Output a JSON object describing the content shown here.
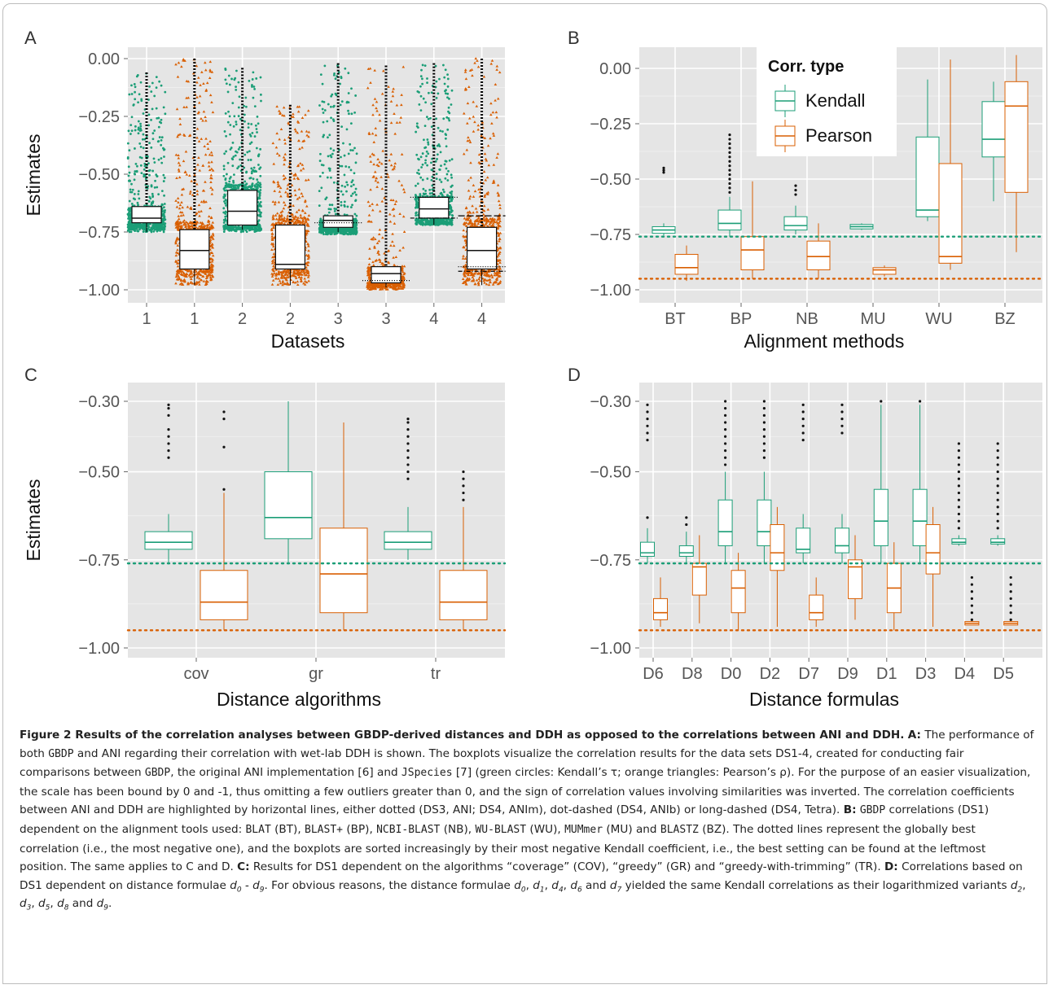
{
  "figure": {
    "panels": [
      {
        "letter": "A",
        "chart_data": {
          "type": "box",
          "xlabel": "Datasets",
          "ylabel": "Estimates",
          "ylim": [
            -1.0,
            0.0
          ],
          "yticks": [
            0.0,
            -0.25,
            -0.5,
            -0.75,
            -1.0
          ],
          "ytick_labels": [
            "0.00",
            "−0.25",
            "−0.50",
            "−0.75",
            "−1.00"
          ],
          "categories": [
            "1",
            "1",
            "2",
            "2",
            "3",
            "3",
            "4",
            "4"
          ],
          "series": [
            {
              "name": "Kendall",
              "color": "#1b9e77",
              "marker": "circle"
            },
            {
              "name": "Pearson",
              "color": "#d95f02",
              "marker": "triangle"
            }
          ],
          "boxes": [
            {
              "series": 0,
              "q1": -0.71,
              "median": -0.69,
              "q3": -0.64,
              "lo": -0.75,
              "hi": -0.06
            },
            {
              "series": 1,
              "q1": -0.91,
              "median": -0.83,
              "q3": -0.74,
              "lo": -0.98,
              "hi": 0.0
            },
            {
              "series": 0,
              "q1": -0.72,
              "median": -0.66,
              "q3": -0.57,
              "lo": -0.74,
              "hi": -0.04
            },
            {
              "series": 1,
              "q1": -0.91,
              "median": -0.89,
              "q3": -0.72,
              "lo": -0.98,
              "hi": -0.2
            },
            {
              "series": 0,
              "q1": -0.73,
              "median": -0.7,
              "q3": -0.68,
              "lo": -0.75,
              "hi": -0.02
            },
            {
              "series": 1,
              "q1": -0.97,
              "median": -0.93,
              "q3": -0.9,
              "lo": -0.99,
              "hi": -0.03
            },
            {
              "series": 0,
              "q1": -0.69,
              "median": -0.65,
              "q3": -0.6,
              "lo": -0.72,
              "hi": -0.02
            },
            {
              "series": 1,
              "q1": -0.91,
              "median": -0.83,
              "q3": -0.73,
              "lo": -0.98,
              "hi": 0.0
            }
          ],
          "reference_lines": [
            {
              "box": 4,
              "value": -0.71,
              "style": "dotted"
            },
            {
              "box": 5,
              "value": -0.96,
              "style": "dotted"
            },
            {
              "box": 6,
              "value": -0.6,
              "style": "dotted"
            },
            {
              "box": 6,
              "value": -0.69,
              "style": "dot-dashed"
            },
            {
              "box": 7,
              "value": -0.68,
              "style": "long-dashed"
            },
            {
              "box": 7,
              "value": -0.9,
              "style": "dotted"
            },
            {
              "box": 7,
              "value": -0.92,
              "style": "dot-dashed"
            }
          ]
        }
      },
      {
        "letter": "B",
        "chart_data": {
          "type": "box",
          "xlabel": "Alignment methods",
          "ylabel": "",
          "ylim": [
            -1.0,
            0.0
          ],
          "yticks": [
            0.0,
            -0.25,
            -0.5,
            -0.75,
            -1.0
          ],
          "ytick_labels": [
            "0.00",
            "−0.25",
            "−0.50",
            "−0.75",
            "−1.00"
          ],
          "categories": [
            "BT",
            "BP",
            "NB",
            "MU",
            "WU",
            "BZ"
          ],
          "legend": {
            "title": "Corr. type",
            "position": "top-right",
            "items": [
              "Kendall",
              "Pearson"
            ]
          },
          "kendall": [
            {
              "q1": -0.745,
              "median": -0.73,
              "q3": -0.715,
              "lo": -0.755,
              "hi": -0.7,
              "outliers": [
                -0.45,
                -0.46,
                -0.47
              ]
            },
            {
              "q1": -0.73,
              "median": -0.7,
              "q3": -0.64,
              "lo": -0.76,
              "hi": -0.58,
              "outliers": [
                -0.3,
                -0.32,
                -0.34,
                -0.36,
                -0.38,
                -0.4,
                -0.42,
                -0.44,
                -0.46,
                -0.48,
                -0.5,
                -0.52,
                -0.54,
                -0.56
              ]
            },
            {
              "q1": -0.73,
              "median": -0.71,
              "q3": -0.67,
              "lo": -0.75,
              "hi": -0.62,
              "outliers": [
                -0.53,
                -0.55,
                -0.57
              ]
            },
            {
              "q1": -0.725,
              "median": -0.715,
              "q3": -0.705,
              "lo": -0.73,
              "hi": -0.7,
              "outliers": []
            },
            {
              "q1": -0.67,
              "median": -0.64,
              "q3": -0.31,
              "lo": -0.69,
              "hi": -0.05,
              "outliers": []
            },
            {
              "q1": -0.4,
              "median": -0.32,
              "q3": -0.15,
              "lo": -0.6,
              "hi": -0.06,
              "outliers": []
            }
          ],
          "pearson": [
            {
              "q1": -0.93,
              "median": -0.9,
              "q3": -0.84,
              "lo": -0.96,
              "hi": -0.8,
              "outliers": []
            },
            {
              "q1": -0.91,
              "median": -0.82,
              "q3": -0.76,
              "lo": -0.95,
              "hi": -0.51,
              "outliers": []
            },
            {
              "q1": -0.91,
              "median": -0.85,
              "q3": -0.78,
              "lo": -0.95,
              "hi": -0.7,
              "outliers": []
            },
            {
              "q1": -0.93,
              "median": -0.91,
              "q3": -0.9,
              "lo": -0.94,
              "hi": -0.89,
              "outliers": []
            },
            {
              "q1": -0.88,
              "median": -0.85,
              "q3": -0.43,
              "lo": -0.91,
              "hi": 0.04,
              "outliers": []
            },
            {
              "q1": -0.56,
              "median": -0.17,
              "q3": -0.06,
              "lo": -0.83,
              "hi": 0.06,
              "outliers": []
            }
          ],
          "hlines": [
            {
              "series": "Kendall",
              "value": -0.76
            },
            {
              "series": "Pearson",
              "value": -0.95
            }
          ]
        }
      },
      {
        "letter": "C",
        "chart_data": {
          "type": "box",
          "xlabel": "Distance algorithms",
          "ylabel": "Estimates",
          "ylim": [
            -1.0,
            -0.3
          ],
          "yticks": [
            -0.3,
            -0.5,
            -0.75,
            -1.0
          ],
          "ytick_labels": [
            "−0.30",
            "−0.50",
            "−0.75",
            "−1.00"
          ],
          "categories": [
            "cov",
            "gr",
            "tr"
          ],
          "kendall": [
            {
              "q1": -0.72,
              "median": -0.7,
              "q3": -0.67,
              "lo": -0.76,
              "hi": -0.62,
              "outliers": [
                -0.31,
                -0.32,
                -0.34,
                -0.38,
                -0.4,
                -0.42,
                -0.44,
                -0.46
              ]
            },
            {
              "q1": -0.69,
              "median": -0.63,
              "q3": -0.5,
              "lo": -0.76,
              "hi": -0.3,
              "outliers": []
            },
            {
              "q1": -0.72,
              "median": -0.7,
              "q3": -0.67,
              "lo": -0.75,
              "hi": -0.6,
              "outliers": [
                -0.35,
                -0.36,
                -0.38,
                -0.4,
                -0.42,
                -0.44,
                -0.46,
                -0.48,
                -0.5,
                -0.52
              ]
            }
          ],
          "pearson": [
            {
              "q1": -0.92,
              "median": -0.87,
              "q3": -0.78,
              "lo": -0.95,
              "hi": -0.56,
              "outliers": [
                -0.33,
                -0.35,
                -0.43,
                -0.55
              ]
            },
            {
              "q1": -0.9,
              "median": -0.79,
              "q3": -0.66,
              "lo": -0.95,
              "hi": -0.36,
              "outliers": []
            },
            {
              "q1": -0.92,
              "median": -0.87,
              "q3": -0.78,
              "lo": -0.95,
              "hi": -0.6,
              "outliers": [
                -0.5,
                -0.52,
                -0.54,
                -0.56,
                -0.58
              ]
            }
          ],
          "hlines": [
            {
              "series": "Kendall",
              "value": -0.76
            },
            {
              "series": "Pearson",
              "value": -0.95
            }
          ]
        }
      },
      {
        "letter": "D",
        "chart_data": {
          "type": "box",
          "xlabel": "Distance formulas",
          "ylabel": "",
          "ylim": [
            -1.0,
            -0.3
          ],
          "yticks": [
            -0.3,
            -0.5,
            -0.75,
            -1.0
          ],
          "ytick_labels": [
            "−0.30",
            "−0.50",
            "−0.75",
            "−1.00"
          ],
          "categories": [
            "D6",
            "D8",
            "D0",
            "D2",
            "D7",
            "D9",
            "D1",
            "D3",
            "D4",
            "D5"
          ],
          "kendall": [
            {
              "q1": -0.74,
              "median": -0.73,
              "q3": -0.7,
              "lo": -0.76,
              "hi": -0.66,
              "outliers": [
                -0.31,
                -0.33,
                -0.35,
                -0.37,
                -0.39,
                -0.41,
                -0.63
              ]
            },
            {
              "q1": -0.74,
              "median": -0.73,
              "q3": -0.71,
              "lo": -0.76,
              "hi": -0.67,
              "outliers": [
                -0.63,
                -0.65
              ]
            },
            {
              "q1": -0.71,
              "median": -0.67,
              "q3": -0.58,
              "lo": -0.76,
              "hi": -0.5,
              "outliers": [
                -0.3,
                -0.32,
                -0.34,
                -0.36,
                -0.38,
                -0.4,
                -0.42,
                -0.44,
                -0.46,
                -0.48
              ]
            },
            {
              "q1": -0.71,
              "median": -0.67,
              "q3": -0.58,
              "lo": -0.76,
              "hi": -0.5,
              "outliers": [
                -0.3,
                -0.32,
                -0.34,
                -0.36,
                -0.38,
                -0.4,
                -0.42,
                -0.44,
                -0.46
              ]
            },
            {
              "q1": -0.73,
              "median": -0.72,
              "q3": -0.66,
              "lo": -0.76,
              "hi": -0.62,
              "outliers": [
                -0.31,
                -0.33,
                -0.35,
                -0.37,
                -0.39,
                -0.41
              ]
            },
            {
              "q1": -0.73,
              "median": -0.71,
              "q3": -0.66,
              "lo": -0.76,
              "hi": -0.62,
              "outliers": [
                -0.31,
                -0.33,
                -0.35,
                -0.37,
                -0.39
              ]
            },
            {
              "q1": -0.71,
              "median": -0.64,
              "q3": -0.55,
              "lo": -0.76,
              "hi": -0.31,
              "outliers": [
                -0.3
              ]
            },
            {
              "q1": -0.71,
              "median": -0.64,
              "q3": -0.55,
              "lo": -0.76,
              "hi": -0.31,
              "outliers": [
                -0.3
              ]
            },
            {
              "q1": -0.705,
              "median": -0.7,
              "q3": -0.69,
              "lo": -0.71,
              "hi": -0.68,
              "outliers": [
                -0.42,
                -0.44,
                -0.46,
                -0.48,
                -0.5,
                -0.52,
                -0.54,
                -0.56,
                -0.58,
                -0.6,
                -0.62,
                -0.64,
                -0.66
              ]
            },
            {
              "q1": -0.705,
              "median": -0.7,
              "q3": -0.69,
              "lo": -0.71,
              "hi": -0.68,
              "outliers": [
                -0.42,
                -0.44,
                -0.46,
                -0.48,
                -0.5,
                -0.52,
                -0.54,
                -0.56,
                -0.58,
                -0.6,
                -0.62,
                -0.64,
                -0.66
              ]
            }
          ],
          "pearson": [
            {
              "q1": -0.92,
              "median": -0.9,
              "q3": -0.86,
              "lo": -0.94,
              "hi": -0.8,
              "outliers": []
            },
            {
              "q1": -0.85,
              "median": -0.77,
              "q3": -0.76,
              "lo": -0.93,
              "hi": -0.68,
              "outliers": []
            },
            {
              "q1": -0.9,
              "median": -0.83,
              "q3": -0.78,
              "lo": -0.95,
              "hi": -0.73,
              "outliers": []
            },
            {
              "q1": -0.78,
              "median": -0.73,
              "q3": -0.65,
              "lo": -0.94,
              "hi": -0.6,
              "outliers": []
            },
            {
              "q1": -0.92,
              "median": -0.9,
              "q3": -0.85,
              "lo": -0.94,
              "hi": -0.8,
              "outliers": []
            },
            {
              "q1": -0.86,
              "median": -0.77,
              "q3": -0.75,
              "lo": -0.92,
              "hi": -0.68,
              "outliers": []
            },
            {
              "q1": -0.9,
              "median": -0.83,
              "q3": -0.76,
              "lo": -0.95,
              "hi": -0.7,
              "outliers": []
            },
            {
              "q1": -0.79,
              "median": -0.73,
              "q3": -0.65,
              "lo": -0.94,
              "hi": -0.6,
              "outliers": []
            },
            {
              "q1": -0.935,
              "median": -0.93,
              "q3": -0.925,
              "lo": -0.935,
              "hi": -0.925,
              "outliers": [
                -0.8,
                -0.82,
                -0.84,
                -0.86,
                -0.88,
                -0.9,
                -0.92
              ]
            },
            {
              "q1": -0.935,
              "median": -0.93,
              "q3": -0.925,
              "lo": -0.935,
              "hi": -0.925,
              "outliers": [
                -0.8,
                -0.82,
                -0.84,
                -0.86,
                -0.88,
                -0.9,
                -0.92
              ]
            }
          ],
          "hlines": [
            {
              "series": "Kendall",
              "value": -0.76
            },
            {
              "series": "Pearson",
              "value": -0.95
            }
          ]
        }
      }
    ],
    "colors": {
      "kendall": "#1b9e77",
      "pearson": "#d95f02",
      "panel_bg": "#e5e5e5",
      "grid": "#ffffff"
    }
  },
  "caption": {
    "title": "Figure 2 Results of the correlation analyses between GBDP-derived distances and DDH as opposed to the correlations between ANI and DDH.",
    "a_label": "A:",
    "a_text_1": "The performance of both",
    "a_gbdp_1": "GBDP",
    "a_text_2": "and ANI regarding their correlation with wet-lab DDH is shown. The boxplots visualize the correlation results for the data sets DS1-4, created for conducting fair comparisons between",
    "a_gbdp_2": "GBDP",
    "a_text_3": ", the original ANI implementation [6] and",
    "a_jspecies": "JSpecies",
    "a_text_4": "[7] (green circles: Kendall’s τ; orange triangles: Pearson’s ρ). For the purpose of an easier visualization, the scale has been bound by 0 and -1, thus omitting a few outliers greater than 0, and the sign of correlation values involving similarities was inverted. The correlation coefficients between ANI and DDH are highlighted by horizontal lines, either dotted (DS3, ANI; DS4, ANIm), dot-dashed (DS4, ANIb) or long-dashed (DS4, Tetra).",
    "b_label": "B:",
    "b_gbdp": "GBDP",
    "b_text_1": "correlations (DS1) dependent on the alignment tools used:",
    "b_blat": "BLAT",
    "b_t_bt": "(BT),",
    "b_blastplus": "BLAST+",
    "b_t_bp": "(BP),",
    "b_ncbi": "NCBI-BLAST",
    "b_t_nb": "(NB),",
    "b_wu": "WU-BLAST",
    "b_t_wu": "(WU),",
    "b_mummer": "MUMmer",
    "b_t_mu": "(MU) and",
    "b_blastz": "BLASTZ",
    "b_text_2": "(BZ). The dotted lines represent the globally best correlation (i.e., the most negative one), and the boxplots are sorted increasingly by their most negative Kendall coefficient, i.e., the best setting can be found at the leftmost position. The same applies to C and D.",
    "c_label": "C:",
    "c_text": "Results for DS1 dependent on the algorithms “coverage” (COV), “greedy” (GR) and “greedy-with-trimming” (TR).",
    "d_label": "D:",
    "d_text_1": "Correlations based on DS1 dependent on distance formulae",
    "d_text_2": "For obvious reasons, the distance formulae",
    "d_text_3": "yielded the same Kendall correlations as their logarithmized variants"
  }
}
